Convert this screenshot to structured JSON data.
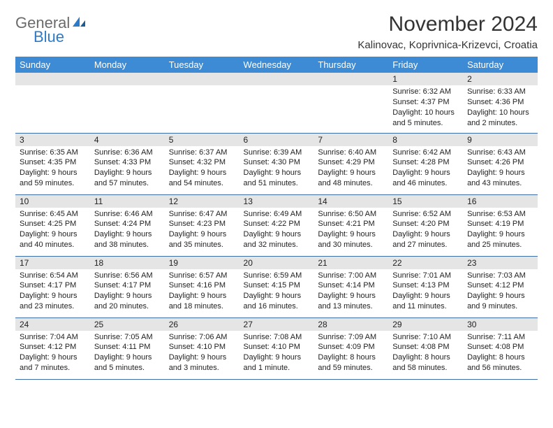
{
  "logo": {
    "line1": "General",
    "line2": "Blue"
  },
  "title": "November 2024",
  "location": "Kalinovac, Koprivnica-Krizevci, Croatia",
  "colors": {
    "header_bg": "#3d8bd4",
    "header_text": "#ffffff",
    "datebar_bg": "#e5e5e5",
    "rule": "#3d6ea8",
    "logo_gray": "#6b6b6b",
    "logo_blue": "#2d7bc8"
  },
  "daynames": [
    "Sunday",
    "Monday",
    "Tuesday",
    "Wednesday",
    "Thursday",
    "Friday",
    "Saturday"
  ],
  "weeks": [
    [
      null,
      null,
      null,
      null,
      null,
      {
        "n": "1",
        "sr": "6:32 AM",
        "ss": "4:37 PM",
        "dl": "10 hours and 5 minutes."
      },
      {
        "n": "2",
        "sr": "6:33 AM",
        "ss": "4:36 PM",
        "dl": "10 hours and 2 minutes."
      }
    ],
    [
      {
        "n": "3",
        "sr": "6:35 AM",
        "ss": "4:35 PM",
        "dl": "9 hours and 59 minutes."
      },
      {
        "n": "4",
        "sr": "6:36 AM",
        "ss": "4:33 PM",
        "dl": "9 hours and 57 minutes."
      },
      {
        "n": "5",
        "sr": "6:37 AM",
        "ss": "4:32 PM",
        "dl": "9 hours and 54 minutes."
      },
      {
        "n": "6",
        "sr": "6:39 AM",
        "ss": "4:30 PM",
        "dl": "9 hours and 51 minutes."
      },
      {
        "n": "7",
        "sr": "6:40 AM",
        "ss": "4:29 PM",
        "dl": "9 hours and 48 minutes."
      },
      {
        "n": "8",
        "sr": "6:42 AM",
        "ss": "4:28 PM",
        "dl": "9 hours and 46 minutes."
      },
      {
        "n": "9",
        "sr": "6:43 AM",
        "ss": "4:26 PM",
        "dl": "9 hours and 43 minutes."
      }
    ],
    [
      {
        "n": "10",
        "sr": "6:45 AM",
        "ss": "4:25 PM",
        "dl": "9 hours and 40 minutes."
      },
      {
        "n": "11",
        "sr": "6:46 AM",
        "ss": "4:24 PM",
        "dl": "9 hours and 38 minutes."
      },
      {
        "n": "12",
        "sr": "6:47 AM",
        "ss": "4:23 PM",
        "dl": "9 hours and 35 minutes."
      },
      {
        "n": "13",
        "sr": "6:49 AM",
        "ss": "4:22 PM",
        "dl": "9 hours and 32 minutes."
      },
      {
        "n": "14",
        "sr": "6:50 AM",
        "ss": "4:21 PM",
        "dl": "9 hours and 30 minutes."
      },
      {
        "n": "15",
        "sr": "6:52 AM",
        "ss": "4:20 PM",
        "dl": "9 hours and 27 minutes."
      },
      {
        "n": "16",
        "sr": "6:53 AM",
        "ss": "4:19 PM",
        "dl": "9 hours and 25 minutes."
      }
    ],
    [
      {
        "n": "17",
        "sr": "6:54 AM",
        "ss": "4:17 PM",
        "dl": "9 hours and 23 minutes."
      },
      {
        "n": "18",
        "sr": "6:56 AM",
        "ss": "4:17 PM",
        "dl": "9 hours and 20 minutes."
      },
      {
        "n": "19",
        "sr": "6:57 AM",
        "ss": "4:16 PM",
        "dl": "9 hours and 18 minutes."
      },
      {
        "n": "20",
        "sr": "6:59 AM",
        "ss": "4:15 PM",
        "dl": "9 hours and 16 minutes."
      },
      {
        "n": "21",
        "sr": "7:00 AM",
        "ss": "4:14 PM",
        "dl": "9 hours and 13 minutes."
      },
      {
        "n": "22",
        "sr": "7:01 AM",
        "ss": "4:13 PM",
        "dl": "9 hours and 11 minutes."
      },
      {
        "n": "23",
        "sr": "7:03 AM",
        "ss": "4:12 PM",
        "dl": "9 hours and 9 minutes."
      }
    ],
    [
      {
        "n": "24",
        "sr": "7:04 AM",
        "ss": "4:12 PM",
        "dl": "9 hours and 7 minutes."
      },
      {
        "n": "25",
        "sr": "7:05 AM",
        "ss": "4:11 PM",
        "dl": "9 hours and 5 minutes."
      },
      {
        "n": "26",
        "sr": "7:06 AM",
        "ss": "4:10 PM",
        "dl": "9 hours and 3 minutes."
      },
      {
        "n": "27",
        "sr": "7:08 AM",
        "ss": "4:10 PM",
        "dl": "9 hours and 1 minute."
      },
      {
        "n": "28",
        "sr": "7:09 AM",
        "ss": "4:09 PM",
        "dl": "8 hours and 59 minutes."
      },
      {
        "n": "29",
        "sr": "7:10 AM",
        "ss": "4:08 PM",
        "dl": "8 hours and 58 minutes."
      },
      {
        "n": "30",
        "sr": "7:11 AM",
        "ss": "4:08 PM",
        "dl": "8 hours and 56 minutes."
      }
    ]
  ],
  "labels": {
    "sunrise": "Sunrise: ",
    "sunset": "Sunset: ",
    "daylight": "Daylight: "
  }
}
